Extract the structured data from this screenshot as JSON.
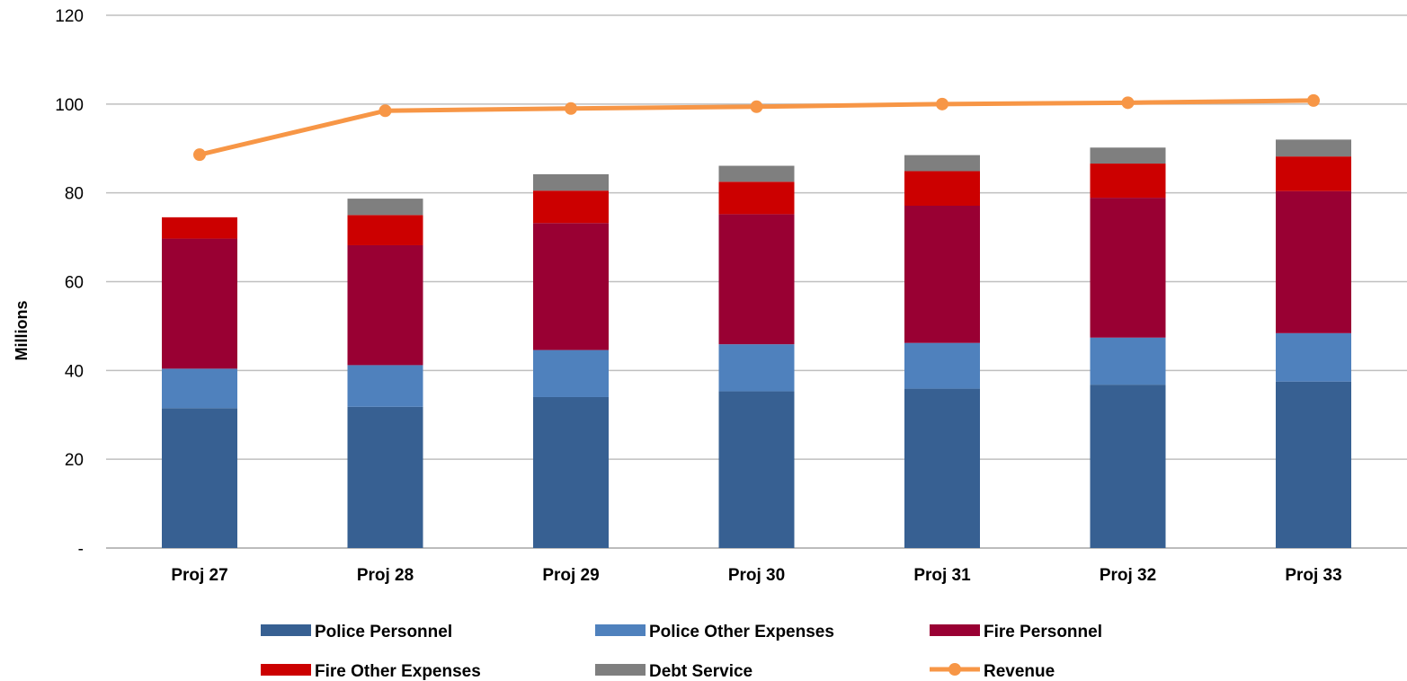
{
  "chart_data": {
    "type": "bar",
    "stacked": true,
    "ylabel": "Millions",
    "ylim": [
      0,
      120
    ],
    "yticks": [
      {
        "value": 0,
        "label": "-"
      },
      {
        "value": 20,
        "label": "20"
      },
      {
        "value": 40,
        "label": "40"
      },
      {
        "value": 60,
        "label": "60"
      },
      {
        "value": 80,
        "label": "80"
      },
      {
        "value": 100,
        "label": "100"
      },
      {
        "value": 120,
        "label": "120"
      }
    ],
    "grid": true,
    "legend_position": "bottom",
    "categories": [
      "Proj 27",
      "Proj 28",
      "Proj 29",
      "Proj 30",
      "Proj 31",
      "Proj 32",
      "Proj 33"
    ],
    "series": [
      {
        "name": "Police Personnel",
        "kind": "bar",
        "color": "#376092",
        "values": [
          31.5,
          31.8,
          34.0,
          35.3,
          35.9,
          36.8,
          37.5
        ]
      },
      {
        "name": "Police Other Expenses",
        "kind": "bar",
        "color": "#4F81BD",
        "values": [
          8.9,
          9.4,
          10.6,
          10.6,
          10.3,
          10.6,
          10.9
        ]
      },
      {
        "name": "Fire Personnel",
        "kind": "bar",
        "color": "#990033",
        "values": [
          29.3,
          27.0,
          28.6,
          29.3,
          30.9,
          31.5,
          32.0
        ]
      },
      {
        "name": "Fire Other Expenses",
        "kind": "bar",
        "color": "#CC0000",
        "values": [
          4.8,
          6.8,
          7.3,
          7.3,
          7.8,
          7.7,
          7.8
        ]
      },
      {
        "name": "Debt Service",
        "kind": "bar",
        "color": "#7F7F7F",
        "values": [
          0.0,
          3.7,
          3.7,
          3.6,
          3.6,
          3.6,
          3.8
        ]
      },
      {
        "name": "Revenue",
        "kind": "line",
        "color": "#F79646",
        "values": [
          88.6,
          98.5,
          99.0,
          99.4,
          100.0,
          100.3,
          100.8
        ]
      }
    ]
  }
}
